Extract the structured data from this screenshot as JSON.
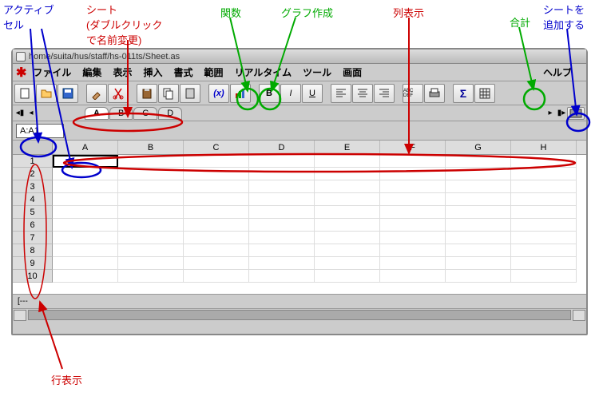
{
  "annotations": {
    "active_cell": "アクティブ\nセル",
    "sheet": "シート\n(ダブルクリック\nで名前変更)",
    "function": "関数",
    "chart": "グラフ作成",
    "col_display": "列表示",
    "sum": "合計",
    "add_sheet": "シートを\n追加する",
    "row_display": "行表示"
  },
  "colors": {
    "blue": "#0000cc",
    "red": "#cc0000",
    "green": "#00aa00"
  },
  "window": {
    "path": "home/suita/hus/staff/hs-011ts/Sheet.as"
  },
  "menu": {
    "items": [
      "ファイル",
      "編集",
      "表示",
      "挿入",
      "書式",
      "範囲",
      "リアルタイム",
      "ツール",
      "画面"
    ],
    "help": "ヘルプ"
  },
  "tabs": {
    "items": [
      "A",
      "B",
      "C",
      "D"
    ],
    "active": 0
  },
  "namebox": "A:A1",
  "grid": {
    "cols": [
      "A",
      "B",
      "C",
      "D",
      "E",
      "F",
      "G",
      "H"
    ],
    "rows": [
      1,
      2,
      3,
      4,
      5,
      6,
      7,
      8,
      9,
      10
    ],
    "active_col": 0,
    "active_row": 0
  },
  "status": "[---",
  "toolbar": {
    "bold": "B",
    "italic": "I",
    "underline": "U",
    "fx": "(x)",
    "sum": "Σ",
    "abc": "ABC\nDEF"
  }
}
